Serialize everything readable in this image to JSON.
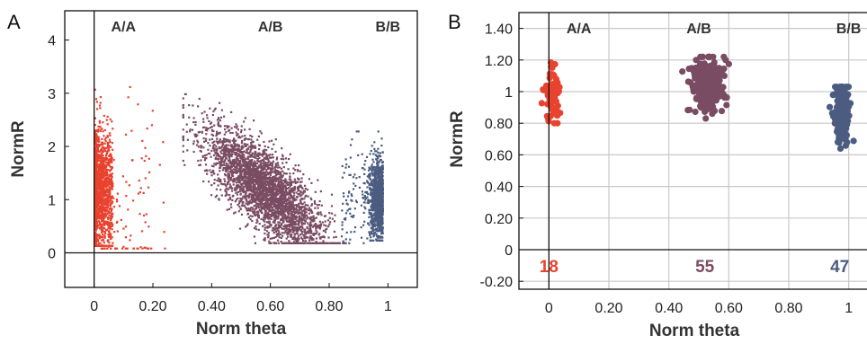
{
  "colors": {
    "AA": "#e8432f",
    "AB": "#7a4c63",
    "BB": "#4b5c80",
    "grid": "#c8c8c8",
    "axis": "#111111"
  },
  "chart_data": [
    {
      "panel": "A",
      "type": "scatter",
      "xlabel": "Norm theta",
      "ylabel": "NormR",
      "xlim": [
        -0.1,
        1.1
      ],
      "ylim": [
        -0.65,
        4.55
      ],
      "xticks": [
        {
          "value": 0,
          "label": "0"
        },
        {
          "value": 0.2,
          "label": "0.20"
        },
        {
          "value": 0.4,
          "label": "0.40"
        },
        {
          "value": 0.6,
          "label": "0.60"
        },
        {
          "value": 0.8,
          "label": "0.80"
        },
        {
          "value": 1,
          "label": "1"
        }
      ],
      "yticks": [
        {
          "value": 0,
          "label": "0"
        },
        {
          "value": 1,
          "label": "1"
        },
        {
          "value": 2,
          "label": "2"
        },
        {
          "value": 3,
          "label": "3"
        },
        {
          "value": 4,
          "label": "4"
        }
      ],
      "grid": false,
      "genotype_labels": [
        {
          "text": "A/A",
          "x": 0.1
        },
        {
          "text": "A/B",
          "x": 0.6
        },
        {
          "text": "B/B",
          "x": 1.0
        }
      ],
      "clusters": [
        {
          "group": "AA",
          "x_range": [
            0.0,
            0.06
          ],
          "y_range": [
            0.15,
            3.5
          ],
          "x_center": 0.015,
          "y_center": 1.2
        },
        {
          "group": "AB",
          "x_range": [
            0.3,
            0.85
          ],
          "y_range": [
            0.2,
            3.0
          ],
          "x_center": 0.58,
          "y_center": 1.2
        },
        {
          "group": "BB",
          "x_range": [
            0.9,
            1.0
          ],
          "y_range": [
            0.25,
            2.3
          ],
          "x_center": 0.98,
          "y_center": 1.05
        }
      ]
    },
    {
      "panel": "B",
      "type": "scatter",
      "xlabel": "Norm theta",
      "ylabel": "NormR",
      "xlim": [
        -0.1,
        1.1
      ],
      "ylim": [
        -0.25,
        1.5
      ],
      "xticks": [
        {
          "value": 0,
          "label": "0"
        },
        {
          "value": 0.2,
          "label": "0.20"
        },
        {
          "value": 0.4,
          "label": "0.40"
        },
        {
          "value": 0.6,
          "label": "0.60"
        },
        {
          "value": 0.8,
          "label": "0.80"
        },
        {
          "value": 1,
          "label": "1"
        }
      ],
      "yticks": [
        {
          "value": -0.2,
          "label": "-0.20"
        },
        {
          "value": 0,
          "label": "0"
        },
        {
          "value": 0.2,
          "label": "0.20"
        },
        {
          "value": 0.4,
          "label": "0.40"
        },
        {
          "value": 0.6,
          "label": "0.60"
        },
        {
          "value": 0.8,
          "label": "0.80"
        },
        {
          "value": 1,
          "label": "1"
        },
        {
          "value": 1.2,
          "label": "1.20"
        },
        {
          "value": 1.4,
          "label": "1.40"
        }
      ],
      "grid": true,
      "genotype_labels": [
        {
          "text": "A/A",
          "x": 0.1
        },
        {
          "text": "A/B",
          "x": 0.5
        },
        {
          "text": "B/B",
          "x": 1.0
        }
      ],
      "counts": [
        {
          "group": "AA",
          "label": "18",
          "x": 0.0
        },
        {
          "group": "AB",
          "label": "55",
          "x": 0.52
        },
        {
          "group": "BB",
          "label": "47",
          "x": 0.97
        }
      ],
      "series": [
        {
          "group": "AA",
          "x_center": 0.01,
          "y_center": 0.98,
          "x_spread": 0.012,
          "y_range": [
            0.8,
            1.25
          ]
        },
        {
          "group": "AB",
          "x_center": 0.53,
          "y_center": 1.03,
          "x_spread": 0.03,
          "y_range": [
            0.83,
            1.22
          ]
        },
        {
          "group": "BB",
          "x_center": 0.975,
          "y_center": 0.87,
          "x_spread": 0.012,
          "y_range": [
            0.6,
            1.03
          ]
        }
      ]
    }
  ]
}
